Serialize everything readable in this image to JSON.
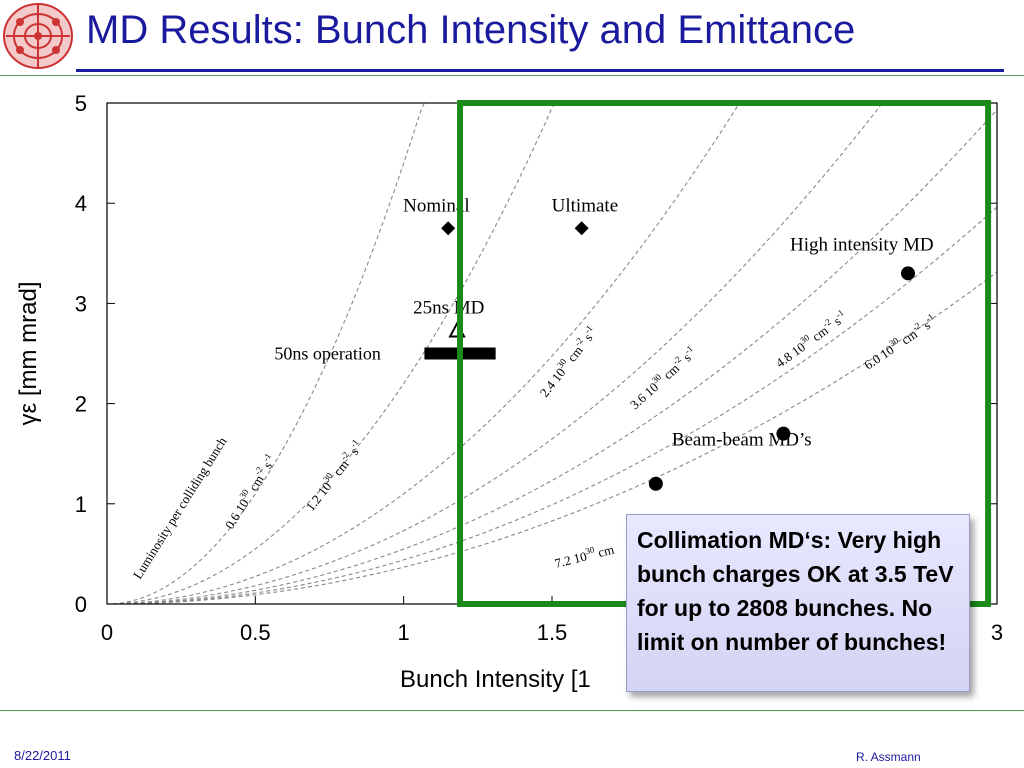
{
  "slide": {
    "title": "MD Results: Bunch Intensity and Emittance",
    "callout": "Collimation MD‘s: Very high bunch charges OK at 3.5 TeV for up to 2808 bunches. No limit on number of bunches!",
    "footer_date": "8/22/2011",
    "footer_author": "R. Assmann"
  },
  "colors": {
    "title": "#1a1a9e",
    "highlight_box": "#1a8a1a",
    "rule": "#4a9a4a"
  },
  "chart_data": {
    "type": "scatter",
    "xlabel": "Bunch Intensity [1",
    "ylabel": "γε [mm mrad]",
    "xlim": [
      0,
      3
    ],
    "ylim": [
      0,
      5
    ],
    "xticks": [
      "0",
      "0.5",
      "1",
      "1.5",
      "3"
    ],
    "yticks": [
      "0",
      "1",
      "2",
      "3",
      "4",
      "5"
    ],
    "grid": false,
    "highlight_region": {
      "x": [
        1.19,
        2.97
      ],
      "y": [
        0,
        5
      ]
    },
    "series": [
      {
        "name": "Nominal",
        "marker": "diamond",
        "points": [
          [
            1.15,
            3.75
          ]
        ]
      },
      {
        "name": "Ultimate",
        "marker": "diamond",
        "points": [
          [
            1.6,
            3.75
          ]
        ]
      },
      {
        "name": "High intensity MD",
        "marker": "circle",
        "points": [
          [
            2.7,
            3.3
          ]
        ]
      },
      {
        "name": "Beam-beam MD’s",
        "marker": "circle",
        "points": [
          [
            1.85,
            1.2
          ],
          [
            2.28,
            1.7
          ]
        ]
      },
      {
        "name": "25ns MD",
        "marker": "triangle",
        "points": [
          [
            1.18,
            2.72
          ]
        ]
      },
      {
        "name": "50ns operation",
        "marker": "bar",
        "x_range": [
          1.07,
          1.31
        ],
        "y": 2.5
      }
    ],
    "luminosity_curves": {
      "title": "Luminosity per colliding bunch",
      "curves": [
        {
          "label": "0.6 10",
          "coef": 1.1
        },
        {
          "label": "1.2 10",
          "coef": 0.55
        },
        {
          "label": "2.4 10",
          "coef": 0.275
        },
        {
          "label": "3.6 10",
          "coef": 0.183
        },
        {
          "label": "4.8 10",
          "coef": 0.137
        },
        {
          "label": "6.0 10",
          "coef": 0.11
        },
        {
          "label": "7.2 10",
          "coef": 0.092
        }
      ],
      "unit_exponent": "30",
      "unit_text": "cm",
      "unit_neg2": "-2",
      "unit_s": "s",
      "unit_neg1": "-1"
    }
  }
}
